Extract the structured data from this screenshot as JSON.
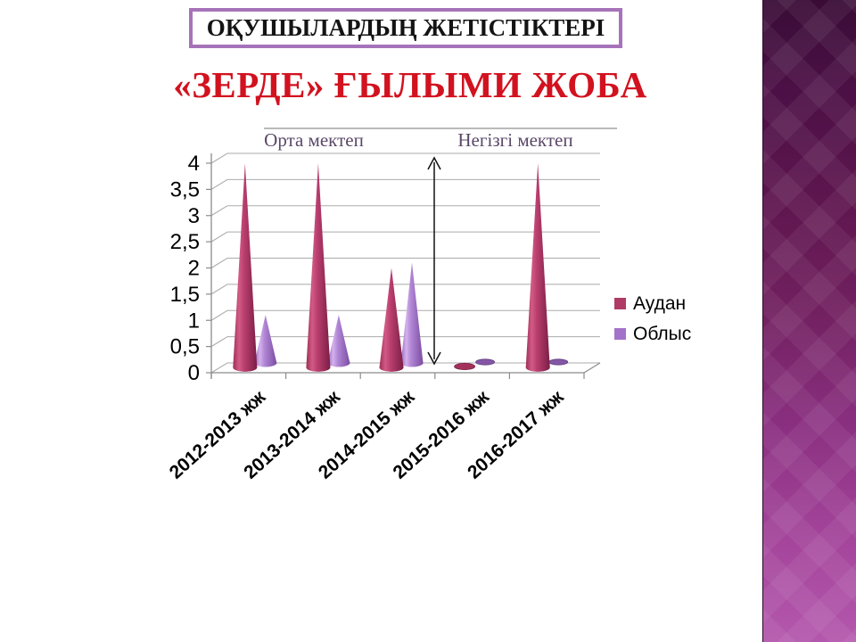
{
  "slide": {
    "header_box": {
      "text": "ОҚУШЫЛАРДЫҢ ЖЕТІСТІКТЕРІ"
    },
    "title": {
      "text": "«ЗЕРДЕ» ҒЫЛЫМИ ЖОБА"
    }
  },
  "colors": {
    "title_red": "#d2121f",
    "header_border_purple": "#a673b9",
    "series_audan": "#b03a66",
    "series_oblys": "#a373c9",
    "gridline_gray": "#ababab",
    "axis_gray": "#8c8c8c",
    "group_label_purple": "#5a4868",
    "sidebar_gradient_top": "#390c36",
    "sidebar_gradient_bottom": "#b458ad"
  },
  "chart_data": {
    "type": "bar",
    "variant": "3d-cone",
    "title": "",
    "xlabel": "",
    "ylabel": "",
    "categories": [
      "2012-2013 жж",
      "2013-2014 жж",
      "2014-2015 жж",
      "2015-2016 жж",
      "2016-2017 жж"
    ],
    "series": [
      {
        "name": "Аудан",
        "color": "#b03a66",
        "values": [
          4,
          4,
          2,
          0,
          4
        ]
      },
      {
        "name": "Облыс",
        "color": "#a373c9",
        "values": [
          1,
          1,
          2,
          0,
          0
        ]
      }
    ],
    "ylim": [
      0,
      4
    ],
    "ytick_step": 0.5,
    "ytick_labels": [
      "0",
      "0,5",
      "1",
      "1,5",
      "2",
      "2,5",
      "3",
      "3,5",
      "4"
    ],
    "grid": true,
    "legend_position": "right",
    "legend": [
      "Аудан",
      "Облыс"
    ],
    "annotations": {
      "group_labels": [
        {
          "text": "Орта мектеп"
        },
        {
          "text": "Негізгі мектеп"
        }
      ],
      "separator_arrow": "double-headed-vertical"
    }
  }
}
